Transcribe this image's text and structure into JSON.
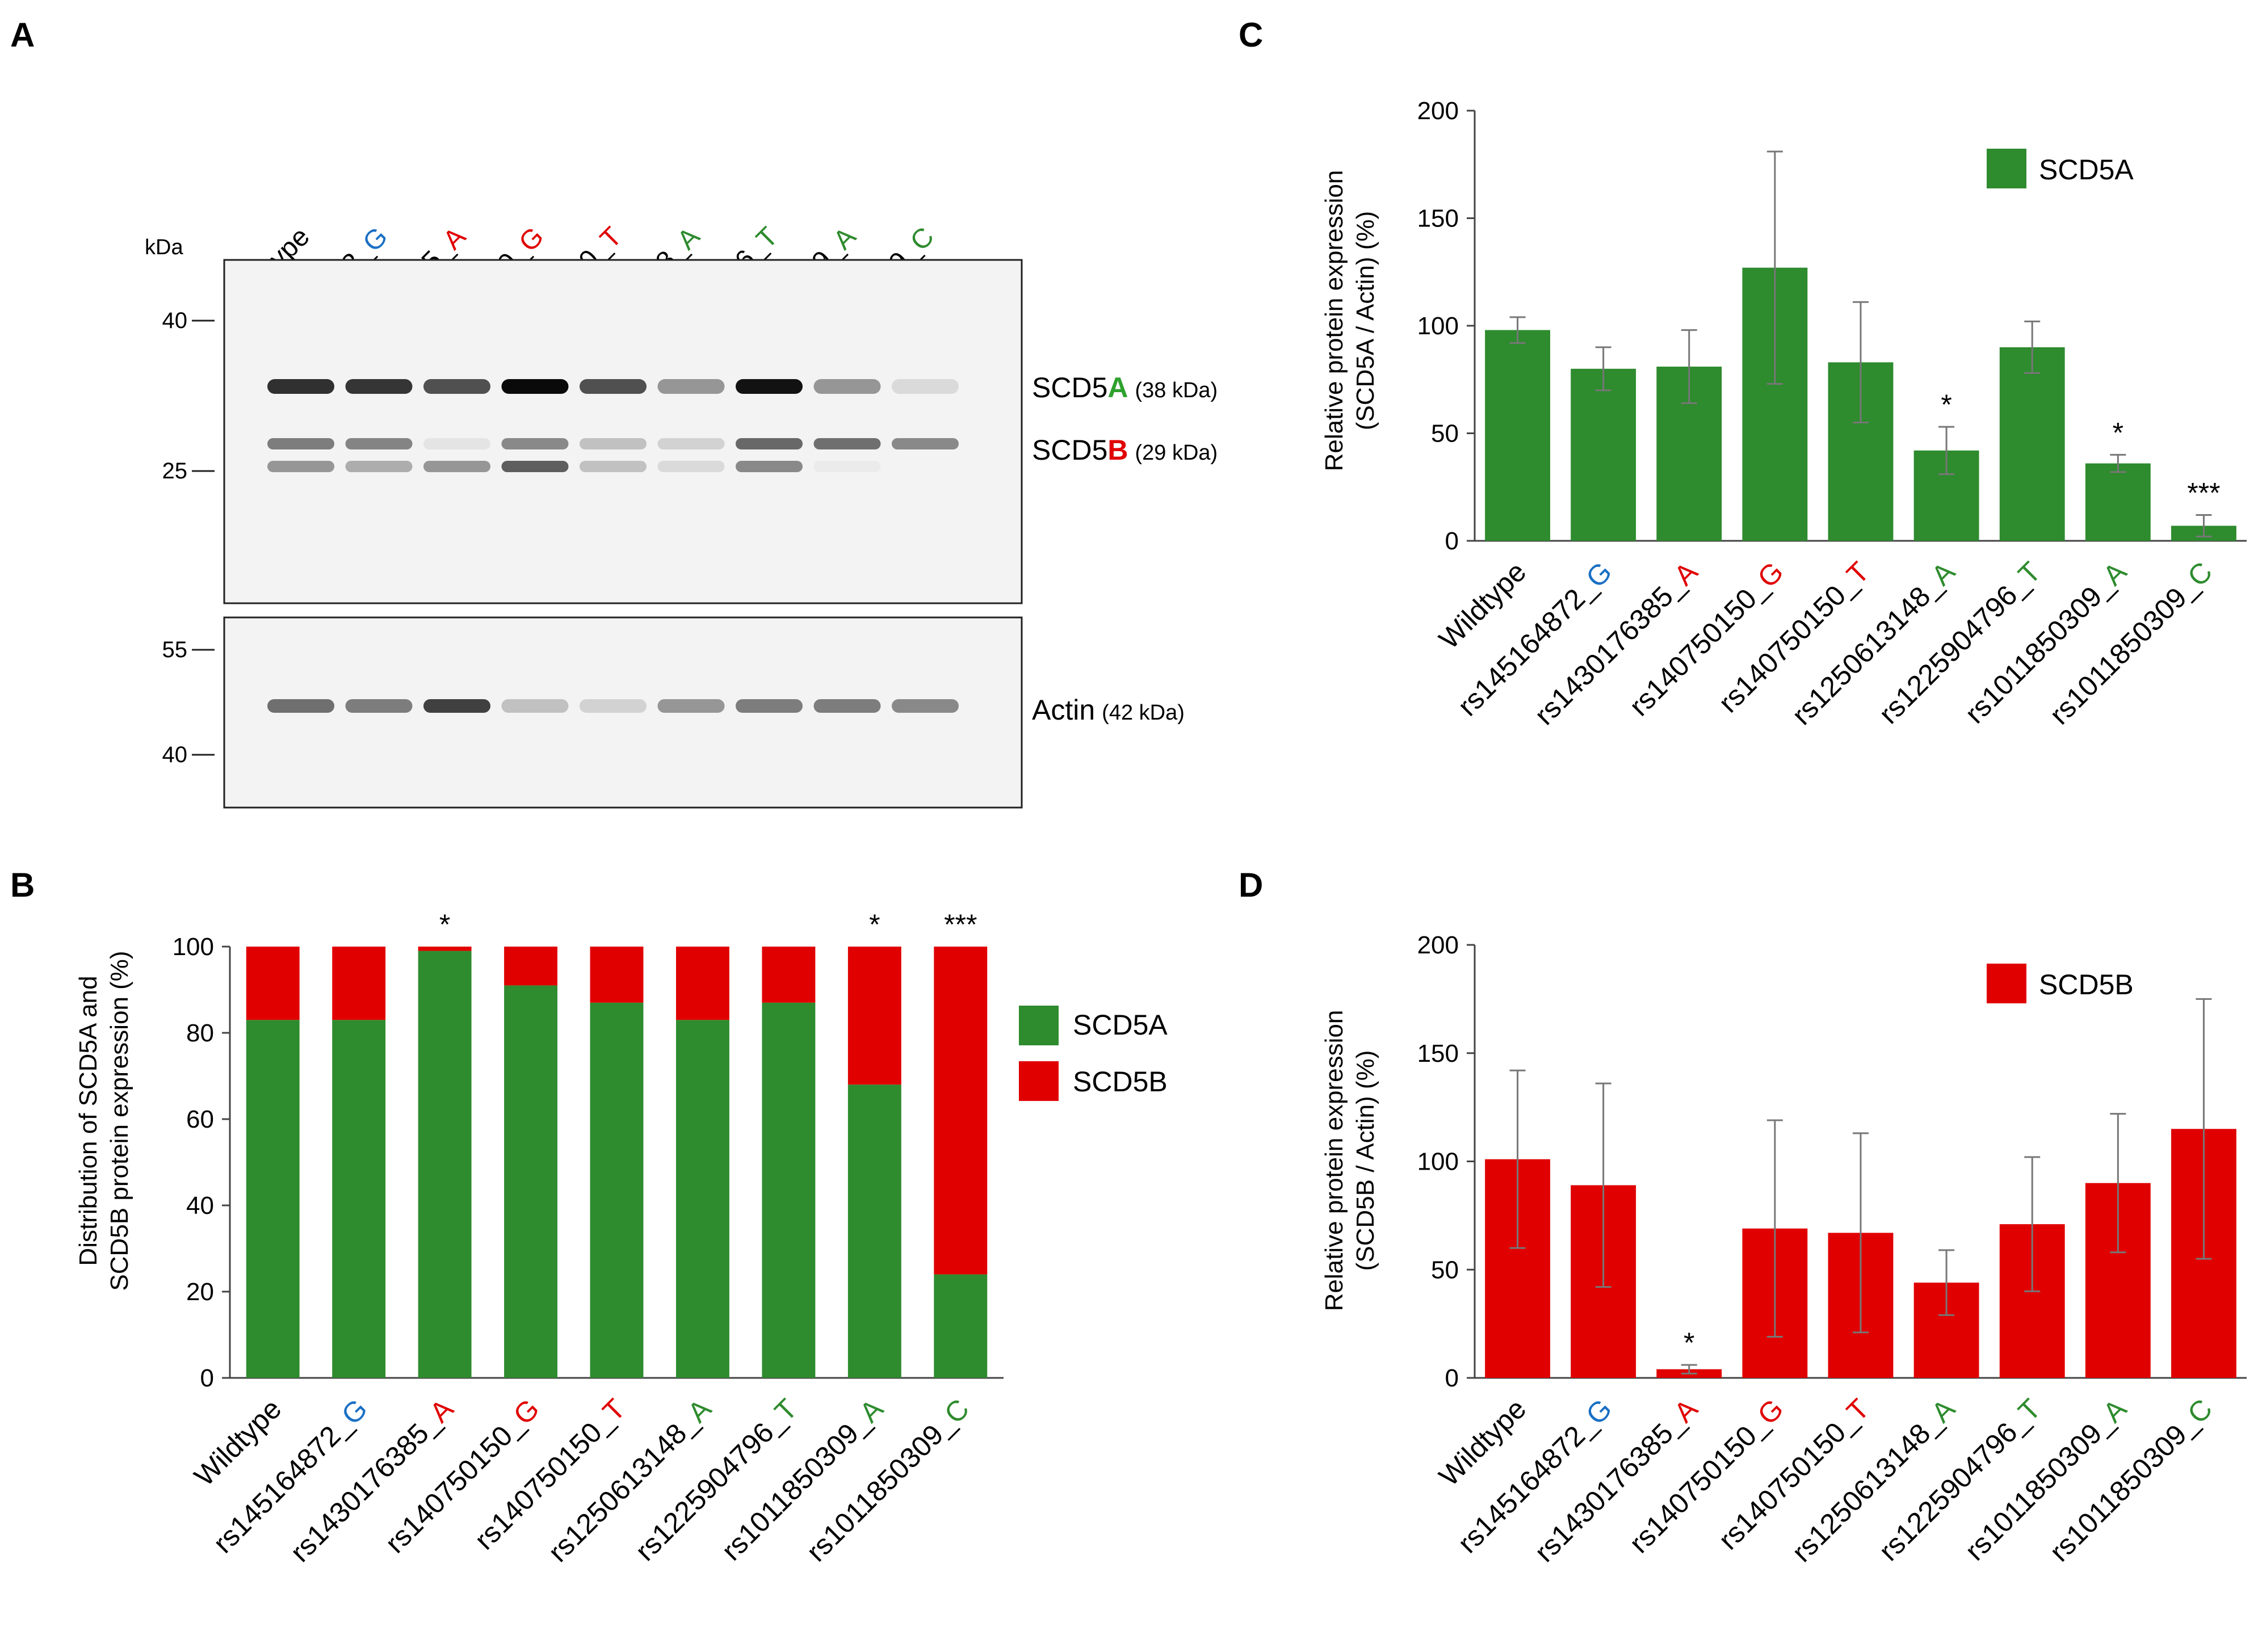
{
  "panel_labels": {
    "a": "A",
    "b": "B",
    "c": "C",
    "d": "D"
  },
  "colors": {
    "green": "#2e8b2e",
    "red": "#e00000",
    "blue": "#1a6fc4",
    "grey": "#777777"
  },
  "samples": [
    {
      "prefix": "Wildtype",
      "allele": "",
      "allele_color": ""
    },
    {
      "prefix": "rs145164872_",
      "allele": "G",
      "allele_color": "#1a6fc4"
    },
    {
      "prefix": "rs1430176385_",
      "allele": "A",
      "allele_color": "#e00000"
    },
    {
      "prefix": "rs140750150_",
      "allele": "G",
      "allele_color": "#e00000"
    },
    {
      "prefix": "rs140750150_",
      "allele": "T",
      "allele_color": "#e00000"
    },
    {
      "prefix": "rs1250613148_",
      "allele": "A",
      "allele_color": "#2e8b2e"
    },
    {
      "prefix": "rs1225904796_",
      "allele": "T",
      "allele_color": "#2e8b2e"
    },
    {
      "prefix": "rs1011850309_",
      "allele": "A",
      "allele_color": "#2e8b2e"
    },
    {
      "prefix": "rs1011850309_",
      "allele": "C",
      "allele_color": "#2e8b2e"
    }
  ],
  "blot": {
    "kda_label": "kDa",
    "upper_markers": [
      "40",
      "25"
    ],
    "lower_markers": [
      "55",
      "40"
    ],
    "scd5a_name": "SCD5",
    "scd5a_letter": "A",
    "scd5a_size": "(38 kDa)",
    "scd5b_name": "SCD5",
    "scd5b_letter": "B",
    "scd5b_size": "(29 kDa)",
    "actin_name": "Actin",
    "actin_size": "(42 kDa)",
    "scd5a_intensity": [
      0.9,
      0.88,
      0.8,
      1.0,
      0.8,
      0.55,
      0.98,
      0.55,
      0.2
    ],
    "scd5b_intensity": [
      0.65,
      0.62,
      0.12,
      0.6,
      0.35,
      0.25,
      0.72,
      0.7,
      0.6
    ],
    "scd5b_lower_intensity": [
      0.55,
      0.45,
      0.55,
      0.75,
      0.35,
      0.2,
      0.6,
      0.05,
      0.0
    ],
    "actin_intensity": [
      0.7,
      0.65,
      0.85,
      0.35,
      0.25,
      0.55,
      0.65,
      0.65,
      0.6
    ]
  },
  "chart_data": [
    {
      "id": "B",
      "type": "bar",
      "stacked": true,
      "categories": [
        "Wildtype",
        "rs145164872_G",
        "rs1430176385_A",
        "rs140750150_G",
        "rs140750150_T",
        "rs1250613148_A",
        "rs1225904796_T",
        "rs1011850309_A",
        "rs1011850309_C"
      ],
      "series": [
        {
          "name": "SCD5A",
          "color": "#2e8b2e",
          "values": [
            83,
            83,
            99,
            91,
            87,
            83,
            87,
            68,
            24
          ]
        },
        {
          "name": "SCD5B",
          "color": "#e00000",
          "values": [
            17,
            17,
            1,
            9,
            13,
            17,
            13,
            32,
            76
          ]
        }
      ],
      "significance": [
        "",
        "",
        "*",
        "",
        "",
        "",
        "",
        "*",
        "***"
      ],
      "ylabel_line1": "Distribution of SCD5A and",
      "ylabel_line2": "SCD5B protein expression (%)",
      "ylim": [
        0,
        100
      ],
      "yticks": [
        "0",
        "20",
        "40",
        "60",
        "80",
        "100"
      ],
      "legend_position": "right",
      "legend": [
        "SCD5A",
        "SCD5B"
      ]
    },
    {
      "id": "C",
      "type": "bar",
      "categories": [
        "Wildtype",
        "rs145164872_G",
        "rs1430176385_A",
        "rs140750150_G",
        "rs140750150_T",
        "rs1250613148_A",
        "rs1225904796_T",
        "rs1011850309_A",
        "rs1011850309_C"
      ],
      "series": [
        {
          "name": "SCD5A",
          "color": "#2e8b2e",
          "values": [
            98,
            80,
            81,
            127,
            83,
            42,
            90,
            36,
            7
          ],
          "errors": [
            6,
            10,
            17,
            54,
            28,
            11,
            12,
            4,
            5
          ]
        }
      ],
      "significance": [
        "",
        "",
        "",
        "",
        "",
        "*",
        "",
        "*",
        "***"
      ],
      "ylabel_line1": "Relative protein expression",
      "ylabel_line2": "(SCD5A / Actin) (%)",
      "ylim": [
        0,
        200
      ],
      "yticks": [
        "0",
        "50",
        "100",
        "150",
        "200"
      ],
      "legend_position": "top-right",
      "legend": [
        "SCD5A"
      ]
    },
    {
      "id": "D",
      "type": "bar",
      "categories": [
        "Wildtype",
        "rs145164872_G",
        "rs1430176385_A",
        "rs140750150_G",
        "rs140750150_T",
        "rs1250613148_A",
        "rs1225904796_T",
        "rs1011850309_A",
        "rs1011850309_C"
      ],
      "series": [
        {
          "name": "SCD5B",
          "color": "#e00000",
          "values": [
            101,
            89,
            4,
            69,
            67,
            44,
            71,
            90,
            115
          ],
          "errors": [
            41,
            47,
            2,
            50,
            46,
            15,
            31,
            32,
            60
          ]
        }
      ],
      "significance": [
        "",
        "",
        "*",
        "",
        "",
        "",
        "",
        "",
        ""
      ],
      "ylabel_line1": "Relative protein expression",
      "ylabel_line2": "(SCD5B / Actin) (%)",
      "ylim": [
        0,
        200
      ],
      "yticks": [
        "0",
        "50",
        "100",
        "150",
        "200"
      ],
      "legend_position": "top-right",
      "legend": [
        "SCD5B"
      ]
    }
  ]
}
